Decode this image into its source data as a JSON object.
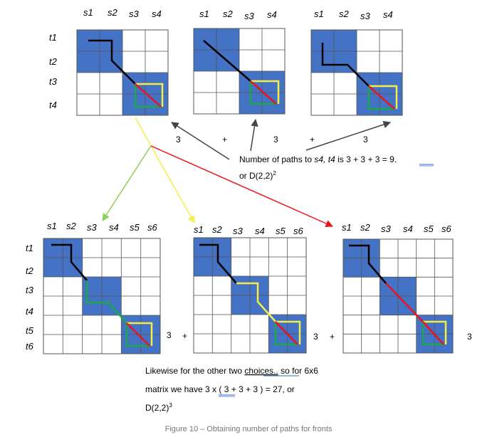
{
  "top_col_labels": [
    "s1",
    "s2",
    "s3",
    "s4"
  ],
  "top_row_labels": [
    "t1",
    "t2",
    "t3",
    "t4"
  ],
  "bottom_col_labels": [
    "s1",
    "s2",
    "s3",
    "s4",
    "s5",
    "s6"
  ],
  "bottom_row_labels": [
    "t1",
    "t2",
    "t3",
    "t4",
    "t5",
    "t6"
  ],
  "top_counts": [
    "3",
    "3",
    "3"
  ],
  "top_operators": [
    "+",
    "+"
  ],
  "bottom_counts": [
    "3",
    "3",
    "3"
  ],
  "bottom_operators": [
    "+",
    "+"
  ],
  "top_note": {
    "line1_prefix": "Number of paths to ",
    "line1_target": "s4, t4",
    "line1_mid": " is 3 + 3 + 3 = ",
    "line1_result": "9. ",
    "line2": "or D(2,2)",
    "line2_sup": "2"
  },
  "bottom_note": {
    "line1_prefix": "Likewise for the other two ",
    "line1_link": "choices..",
    "line1_suffix": " so for 6x6",
    "line2_prefix": "matrix we have 3 x ",
    "line2_paren": "( 3",
    "line2_suffix": " + 3 + 3 )  = 27, or",
    "line3": "D(2,2)",
    "line3_sup": "3"
  },
  "caption": "Figure 10 – Obtaining number of paths for fronts",
  "colors": {
    "block_blue": "#4472c4",
    "grid_line": "#555555",
    "path_black": "#000000",
    "path_red": "#e8141a",
    "path_green": "#1aa84a",
    "path_yellow": "#f4ef46",
    "arrow_dark": "#444444",
    "arrow_green": "#8fcf5a",
    "arrow_yellow": "#f4ef46",
    "arrow_red": "#e8141a",
    "caption_gray": "#777777",
    "underline_blue": "#3366cc"
  }
}
